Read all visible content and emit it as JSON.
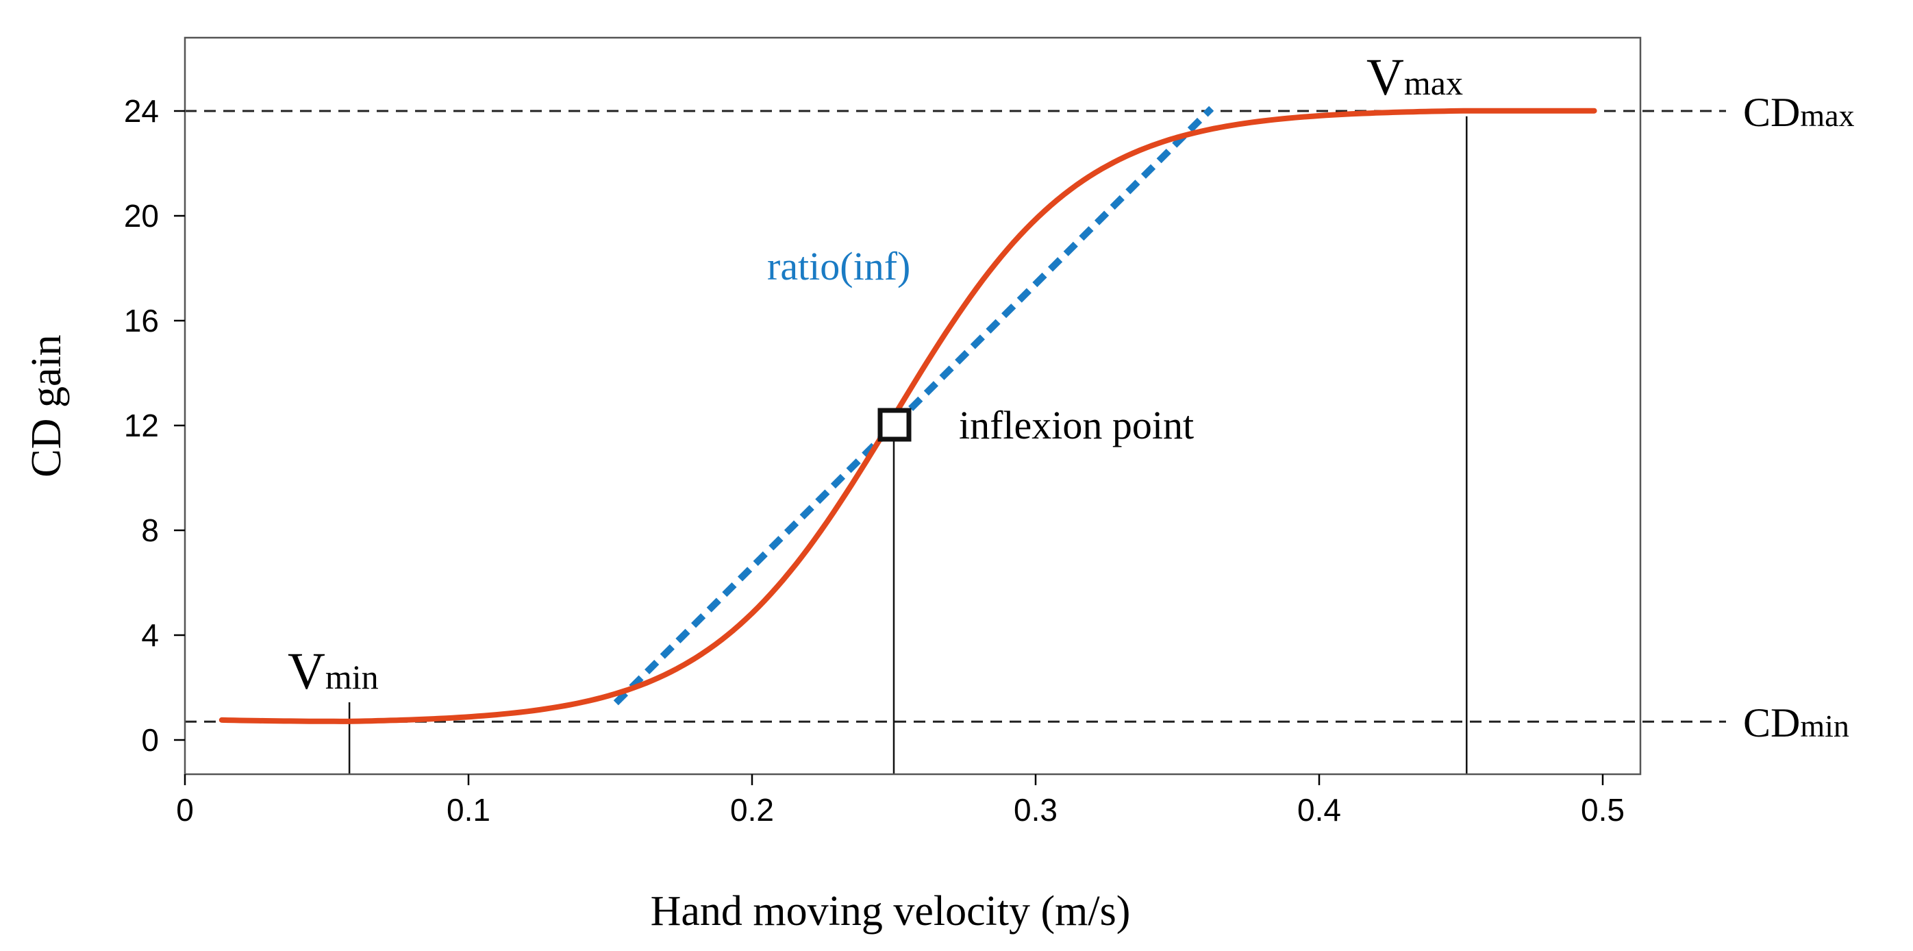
{
  "chart_data": {
    "type": "line",
    "xlabel": "Hand moving velocity (m/s)",
    "ylabel": "CD gain",
    "xlim": [
      0,
      0.52
    ],
    "ylim": [
      -1.3,
      26.8
    ],
    "x_ticks": [
      0,
      0.1,
      0.2,
      0.3,
      0.4,
      0.5
    ],
    "x_tick_labels": [
      "0",
      "0.1",
      "0.2",
      "0.3",
      "0.4",
      "0.5"
    ],
    "y_ticks": [
      0,
      4,
      8,
      12,
      16,
      20,
      24
    ],
    "y_tick_labels": [
      "0",
      "4",
      "8",
      "12",
      "16",
      "20",
      "24"
    ],
    "curve": {
      "name": "CD gain curve",
      "color": "#e2471c",
      "cd_min": 0.7,
      "cd_max": 24.0,
      "v_min": 0.058,
      "v_max": 0.452,
      "inflection_v": 0.25,
      "inflection_gain": 12,
      "x_start": 0.013,
      "x_end": 0.497
    },
    "tangent": {
      "label": "ratio(inf)",
      "color": "#1a7bc4",
      "x_from": 0.152,
      "x_to": 0.362,
      "slope": 108
    },
    "reference_lines": {
      "cd_max": {
        "value": 24.0,
        "label_main": "CD",
        "label_sub": "max"
      },
      "cd_min": {
        "value": 0.7,
        "label_main": "CD",
        "label_sub": "min"
      }
    },
    "vertical_markers": [
      {
        "x": 0.058,
        "label_main": "V",
        "label_sub": "min"
      },
      {
        "x": 0.25,
        "label": "inflexion point"
      },
      {
        "x": 0.452,
        "label_main": "V",
        "label_sub": "max"
      }
    ],
    "inflection_point": {
      "x": 0.25,
      "y": 12,
      "label": "inflexion point"
    }
  }
}
